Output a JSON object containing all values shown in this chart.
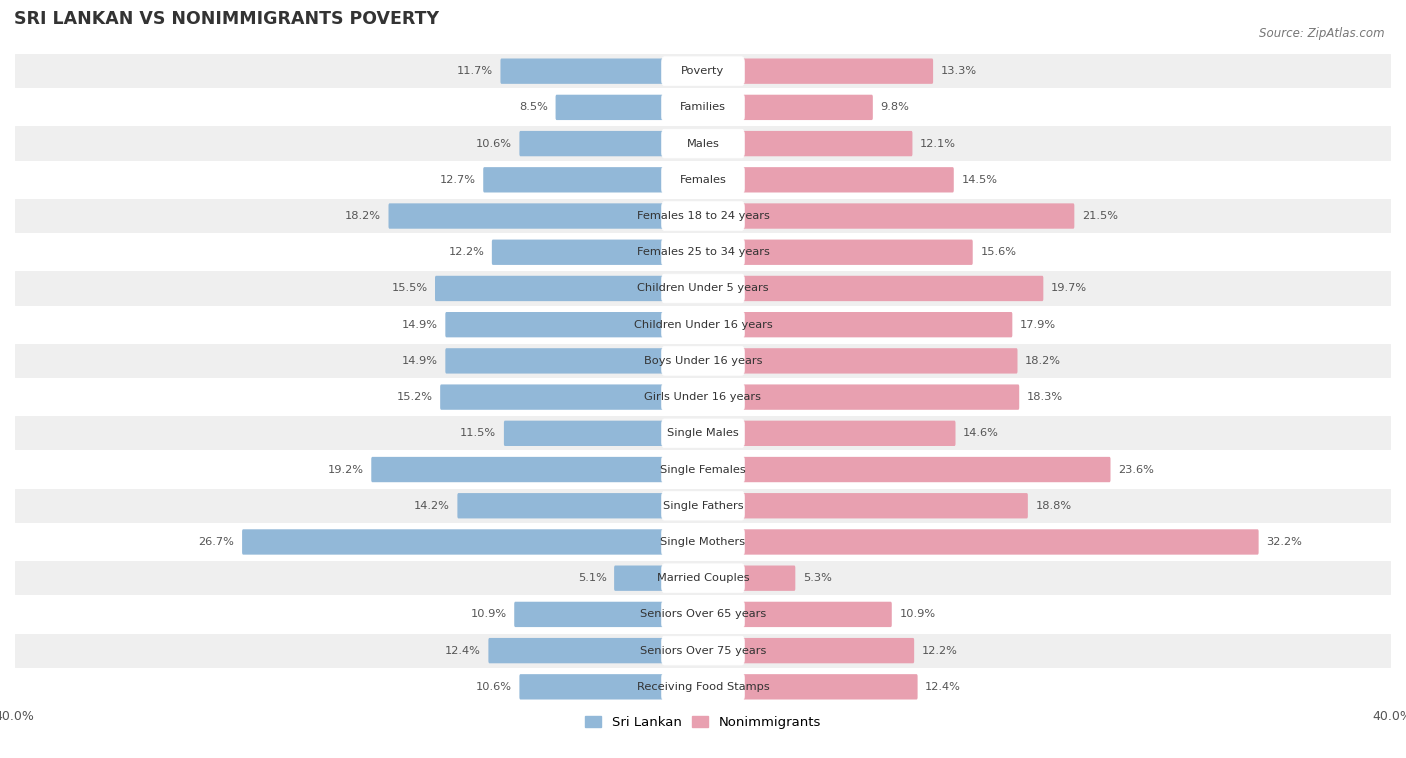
{
  "title": "SRI LANKAN VS NONIMMIGRANTS POVERTY",
  "source": "Source: ZipAtlas.com",
  "categories": [
    "Poverty",
    "Families",
    "Males",
    "Females",
    "Females 18 to 24 years",
    "Females 25 to 34 years",
    "Children Under 5 years",
    "Children Under 16 years",
    "Boys Under 16 years",
    "Girls Under 16 years",
    "Single Males",
    "Single Females",
    "Single Fathers",
    "Single Mothers",
    "Married Couples",
    "Seniors Over 65 years",
    "Seniors Over 75 years",
    "Receiving Food Stamps"
  ],
  "sri_lankan": [
    11.7,
    8.5,
    10.6,
    12.7,
    18.2,
    12.2,
    15.5,
    14.9,
    14.9,
    15.2,
    11.5,
    19.2,
    14.2,
    26.7,
    5.1,
    10.9,
    12.4,
    10.6
  ],
  "nonimmigrants": [
    13.3,
    9.8,
    12.1,
    14.5,
    21.5,
    15.6,
    19.7,
    17.9,
    18.2,
    18.3,
    14.6,
    23.6,
    18.8,
    32.2,
    5.3,
    10.9,
    12.2,
    12.4
  ],
  "sri_lankan_color": "#92b8d8",
  "nonimmigrants_color": "#e8a0b0",
  "bar_height": 0.58,
  "xlim": 40,
  "bg_row_odd": "#efefef",
  "bg_row_even": "#ffffff",
  "label_bg": "#ffffff",
  "value_color": "#555555",
  "title_color": "#333333",
  "source_color": "#777777"
}
